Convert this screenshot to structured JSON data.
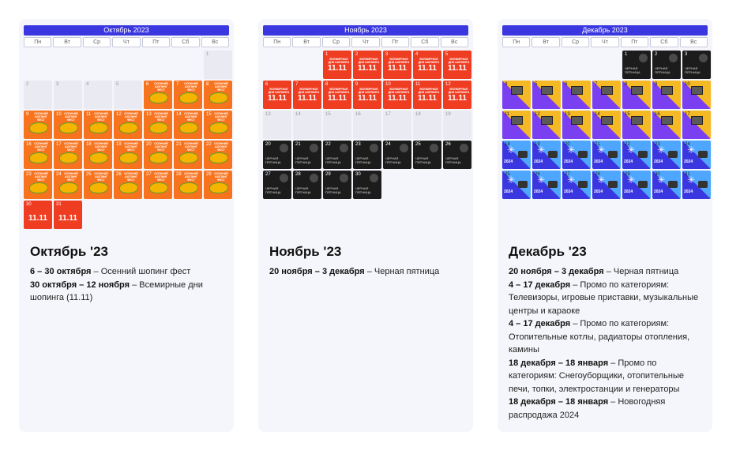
{
  "weekdays": [
    "Пн",
    "Вт",
    "Ср",
    "Чт",
    "Пт",
    "Сб",
    "Вс"
  ],
  "months": [
    {
      "calendar_title": "Октябрь 2023",
      "heading": "Октябрь '23",
      "start_offset": 6,
      "days_count": 31,
      "promos": [
        {
          "dates": "6 – 30 октября",
          "text": "Осенний шопинг фест"
        },
        {
          "dates": "30 октября – 12 ноября",
          "text": "Всемирные дни шопинга (11.11)"
        }
      ],
      "tile_texts": {
        "orange": "ОСЕННИЙ ШОПИНГ ФЕСТ",
        "red_big": "11.11"
      }
    },
    {
      "calendar_title": "Ноябрь 2023",
      "heading": "Ноябрь '23",
      "start_offset": 2,
      "days_count": 30,
      "promos": [
        {
          "dates": "20 ноября – 3 декабря",
          "text": "Черная пятница"
        }
      ],
      "tile_texts": {
        "red_small": "ВСЕМИРНЫЕ ДНИ ШОПИНГА",
        "red_big": "11.11",
        "black": "ЧЕРНАЯ ПЯТНИЦА"
      }
    },
    {
      "calendar_title": "Декабрь 2023",
      "heading": "Декабрь '23",
      "start_offset": 4,
      "days_count": 31,
      "promos": [
        {
          "dates": "20 ноября – 3 декабря",
          "text": "Черная пятница"
        },
        {
          "dates": "4 – 17 декабря",
          "text": "Промо по категориям: Телевизоры, игровые приставки, музыкальные центры и караоке"
        },
        {
          "dates": "4 – 17 декабря",
          "text": "Промо по категориям: Отопительные котлы, радиаторы отопления, камины"
        },
        {
          "dates": "18 декабря – 18 января",
          "text": "Промо по категориям: Снегоуборщики, отопительные печи, топки, электростанции и генераторы"
        },
        {
          "dates": "18 декабря – 18 января",
          "text": "Новогодняя распродажа 2024"
        }
      ],
      "tile_texts": {
        "black": "ЧЕРНАЯ ПЯТНИЦА",
        "blue_year": "2024"
      }
    }
  ],
  "colors": {
    "accent_blue": "#3a36e0",
    "orange": "#f7731e",
    "red": "#ef3d22",
    "black": "#1c1c1c",
    "yellow": "#f6b926",
    "purple": "#7a3ff0",
    "light_blue": "#4ea6ff"
  }
}
